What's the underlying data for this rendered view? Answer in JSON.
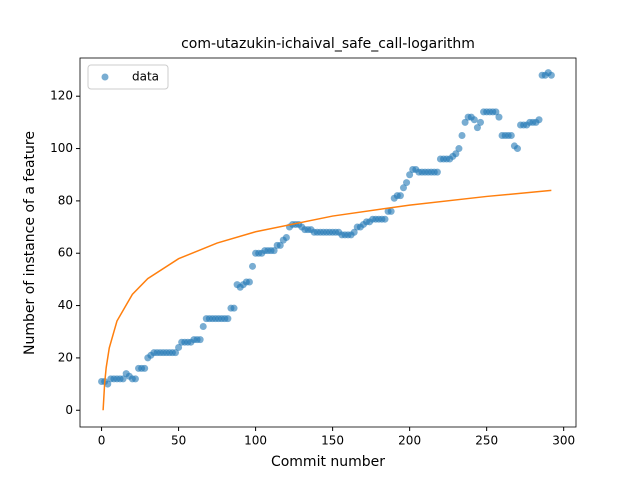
{
  "chart_data": {
    "type": "scatter",
    "title": "com-utazukin-ichaival_safe_call-logarithm",
    "xlabel": "Commit number",
    "ylabel": "Number of instance of a feature",
    "xlim": [
      -14,
      308
    ],
    "ylim": [
      -6.4,
      134.6
    ],
    "xticks": [
      0,
      50,
      100,
      150,
      200,
      250,
      300
    ],
    "yticks": [
      0,
      20,
      40,
      60,
      80,
      100,
      120
    ],
    "legend": "upper left",
    "series": [
      {
        "name": "data",
        "type": "scatter",
        "color": "#1f77b4",
        "x": [
          0,
          2,
          4,
          6,
          8,
          10,
          12,
          14,
          16,
          18,
          20,
          22,
          24,
          26,
          28,
          30,
          32,
          34,
          36,
          38,
          40,
          42,
          44,
          46,
          48,
          50,
          52,
          54,
          56,
          58,
          60,
          62,
          64,
          66,
          68,
          70,
          72,
          74,
          76,
          78,
          80,
          82,
          84,
          86,
          88,
          90,
          92,
          94,
          96,
          98,
          100,
          102,
          104,
          106,
          108,
          110,
          112,
          114,
          116,
          118,
          120,
          122,
          124,
          126,
          128,
          130,
          132,
          134,
          136,
          138,
          140,
          142,
          144,
          146,
          148,
          150,
          152,
          154,
          156,
          158,
          160,
          162,
          164,
          166,
          168,
          170,
          172,
          174,
          176,
          178,
          180,
          182,
          184,
          186,
          188,
          190,
          192,
          194,
          196,
          198,
          200,
          202,
          204,
          206,
          208,
          210,
          212,
          214,
          216,
          218,
          220,
          222,
          224,
          226,
          228,
          230,
          232,
          234,
          236,
          238,
          240,
          242,
          244,
          246,
          248,
          250,
          252,
          254,
          256,
          258,
          260,
          262,
          264,
          266,
          268,
          270,
          272,
          274,
          276,
          278,
          280,
          282,
          284,
          286,
          288,
          290,
          292
        ],
        "values": [
          11,
          11,
          10,
          12,
          12,
          12,
          12,
          12,
          14,
          13,
          12,
          12,
          16,
          16,
          16,
          20,
          21,
          22,
          22,
          22,
          22,
          22,
          22,
          22,
          22,
          24,
          26,
          26,
          26,
          26,
          27,
          27,
          27,
          32,
          35,
          35,
          35,
          35,
          35,
          35,
          35,
          35,
          39,
          39,
          48,
          47,
          48,
          49,
          49,
          55,
          60,
          60,
          60,
          61,
          61,
          61,
          61,
          63,
          63,
          65,
          66,
          70,
          71,
          71,
          71,
          70,
          69,
          69,
          69,
          68,
          68,
          68,
          68,
          68,
          68,
          68,
          68,
          68,
          67,
          67,
          67,
          67,
          68,
          70,
          70,
          71,
          72,
          72,
          73,
          73,
          73,
          73,
          73,
          76,
          76,
          81,
          82,
          82,
          85,
          87,
          90,
          92,
          92,
          91,
          91,
          91,
          91,
          91,
          91,
          91,
          96,
          96,
          96,
          96,
          97,
          98,
          100,
          105,
          110,
          112,
          112,
          111,
          108,
          110,
          114,
          114,
          114,
          114,
          114,
          112,
          105,
          105,
          105,
          105,
          101,
          100,
          109,
          109,
          109,
          110,
          110,
          110,
          111,
          128,
          128,
          129,
          128
        ]
      },
      {
        "type": "line",
        "color": "#ff7f0e",
        "x": [
          1,
          2,
          3,
          5,
          10,
          20,
          30,
          50,
          75,
          100,
          150,
          200,
          250,
          292
        ],
        "values": [
          0,
          10.3,
          16.3,
          23.8,
          34.1,
          44.3,
          50.3,
          57.9,
          63.9,
          68.2,
          74.2,
          78.4,
          81.7,
          84.0
        ]
      }
    ]
  }
}
